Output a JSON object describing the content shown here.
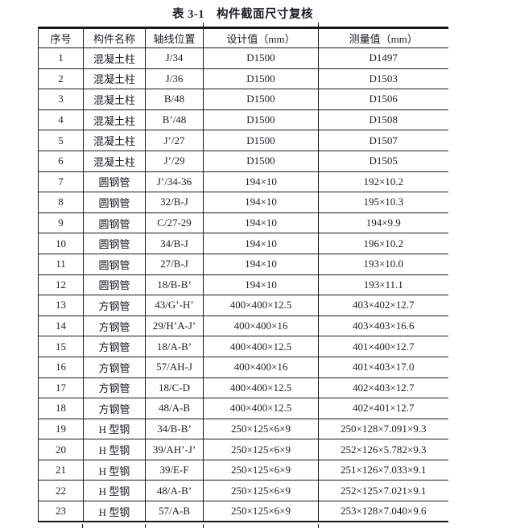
{
  "title": "表 3-1　构件截面尺寸复核",
  "table": {
    "headers": [
      "序号",
      "构件名称",
      "轴线位置",
      "设计值（mm）",
      "测量值（mm）"
    ],
    "rows": [
      [
        "1",
        "混凝土柱",
        "J/34",
        "D1500",
        "D1497"
      ],
      [
        "2",
        "混凝土柱",
        "J/36",
        "D1500",
        "D1503"
      ],
      [
        "3",
        "混凝土柱",
        "B/48",
        "D1500",
        "D1506"
      ],
      [
        "4",
        "混凝土柱",
        "B’/48",
        "D1500",
        "D1508"
      ],
      [
        "5",
        "混凝土柱",
        "J’/27",
        "D1500",
        "D1507"
      ],
      [
        "6",
        "混凝土柱",
        "J’/29",
        "D1500",
        "D1505"
      ],
      [
        "7",
        "圆钢管",
        "J’/34-36",
        "194×10",
        "192×10.2"
      ],
      [
        "8",
        "圆钢管",
        "32/B-J",
        "194×10",
        "195×10.3"
      ],
      [
        "9",
        "圆钢管",
        "C/27-29",
        "194×10",
        "194×9.9"
      ],
      [
        "10",
        "圆钢管",
        "34/B-J",
        "194×10",
        "196×10.2"
      ],
      [
        "11",
        "圆钢管",
        "27/B-J",
        "194×10",
        "193×10.0"
      ],
      [
        "12",
        "圆钢管",
        "18/B-B’",
        "194×10",
        "193×11.1"
      ],
      [
        "13",
        "方钢管",
        "43/G’-H’",
        "400×400×12.5",
        "403×402×12.7"
      ],
      [
        "14",
        "方钢管",
        "29/H’A-J’",
        "400×400×16",
        "403×403×16.6"
      ],
      [
        "15",
        "方钢管",
        "18/A-B’",
        "400×400×12.5",
        "401×400×12.7"
      ],
      [
        "16",
        "方钢管",
        "57/AH-J",
        "400×400×16",
        "401×403×17.0"
      ],
      [
        "17",
        "方钢管",
        "18/C-D",
        "400×400×12.5",
        "402×403×12.7"
      ],
      [
        "18",
        "方钢管",
        "48/A-B",
        "400×400×12.5",
        "402×401×12.7"
      ],
      [
        "19",
        "H 型钢",
        "34/B-B’",
        "250×125×6×9",
        "250×128×7.091×9.3"
      ],
      [
        "20",
        "H 型钢",
        "39/AH’-J’",
        "250×125×6×9",
        "252×126×5.782×9.3"
      ],
      [
        "21",
        "H 型钢",
        "39/E-F",
        "250×125×6×9",
        "251×126×7.033×9.1"
      ],
      [
        "22",
        "H 型钢",
        "48/A-B’",
        "250×125×6×9",
        "252×125×7.021×9.1"
      ],
      [
        "23",
        "H 型钢",
        "57/A-B",
        "250×125×6×9",
        "253×128×7.040×9.6"
      ]
    ]
  },
  "colors": {
    "ink": "#1e1e24",
    "grid": "#1b1b21",
    "background": "#ffffff"
  }
}
